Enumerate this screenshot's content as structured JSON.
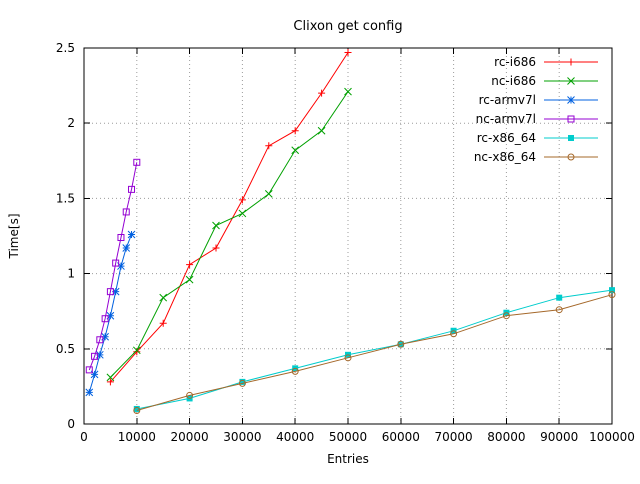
{
  "chart_data": {
    "type": "line",
    "title": "Clixon get config",
    "xlabel": "Entries",
    "ylabel": "Time[s]",
    "xlim": [
      0,
      100000
    ],
    "ylim": [
      0,
      2.5
    ],
    "xticks": [
      0,
      10000,
      20000,
      30000,
      40000,
      50000,
      60000,
      70000,
      80000,
      90000,
      100000
    ],
    "yticks": [
      0,
      0.5,
      1,
      1.5,
      2,
      2.5
    ],
    "grid": true,
    "legend_position": "top-right-inside",
    "series": [
      {
        "name": "rc-i686",
        "color": "#ff0000",
        "marker": "plus",
        "points": [
          [
            5000,
            0.28
          ],
          [
            10000,
            0.48
          ],
          [
            15000,
            0.67
          ],
          [
            20000,
            1.06
          ],
          [
            25000,
            1.17
          ],
          [
            30000,
            1.49
          ],
          [
            35000,
            1.85
          ],
          [
            40000,
            1.95
          ],
          [
            45000,
            2.2
          ],
          [
            50000,
            2.47
          ]
        ]
      },
      {
        "name": "nc-i686",
        "color": "#00a000",
        "marker": "x",
        "points": [
          [
            5000,
            0.31
          ],
          [
            10000,
            0.49
          ],
          [
            15000,
            0.84
          ],
          [
            20000,
            0.96
          ],
          [
            25000,
            1.32
          ],
          [
            30000,
            1.4
          ],
          [
            35000,
            1.53
          ],
          [
            40000,
            1.82
          ],
          [
            45000,
            1.95
          ],
          [
            50000,
            2.21
          ]
        ]
      },
      {
        "name": "rc-armv7l",
        "color": "#0060e0",
        "marker": "star",
        "points": [
          [
            1000,
            0.21
          ],
          [
            2000,
            0.33
          ],
          [
            3000,
            0.46
          ],
          [
            4000,
            0.58
          ],
          [
            5000,
            0.72
          ],
          [
            6000,
            0.88
          ],
          [
            7000,
            1.05
          ],
          [
            8000,
            1.17
          ],
          [
            9000,
            1.26
          ]
        ]
      },
      {
        "name": "nc-armv7l",
        "color": "#9400d3",
        "marker": "square-open",
        "points": [
          [
            1000,
            0.36
          ],
          [
            2000,
            0.45
          ],
          [
            3000,
            0.56
          ],
          [
            4000,
            0.7
          ],
          [
            5000,
            0.88
          ],
          [
            6000,
            1.07
          ],
          [
            7000,
            1.24
          ],
          [
            8000,
            1.41
          ],
          [
            9000,
            1.56
          ],
          [
            10000,
            1.74
          ]
        ]
      },
      {
        "name": "rc-x86_64",
        "color": "#00cccc",
        "marker": "square-filled",
        "points": [
          [
            10000,
            0.1
          ],
          [
            20000,
            0.17
          ],
          [
            30000,
            0.28
          ],
          [
            40000,
            0.37
          ],
          [
            50000,
            0.46
          ],
          [
            60000,
            0.53
          ],
          [
            70000,
            0.62
          ],
          [
            80000,
            0.74
          ],
          [
            90000,
            0.84
          ],
          [
            100000,
            0.89
          ]
        ]
      },
      {
        "name": "nc-x86_64",
        "color": "#a5682a",
        "marker": "circle-open",
        "points": [
          [
            10000,
            0.09
          ],
          [
            20000,
            0.19
          ],
          [
            30000,
            0.27
          ],
          [
            40000,
            0.35
          ],
          [
            50000,
            0.44
          ],
          [
            60000,
            0.53
          ],
          [
            70000,
            0.6
          ],
          [
            80000,
            0.72
          ],
          [
            90000,
            0.76
          ],
          [
            100000,
            0.86
          ]
        ]
      }
    ]
  }
}
